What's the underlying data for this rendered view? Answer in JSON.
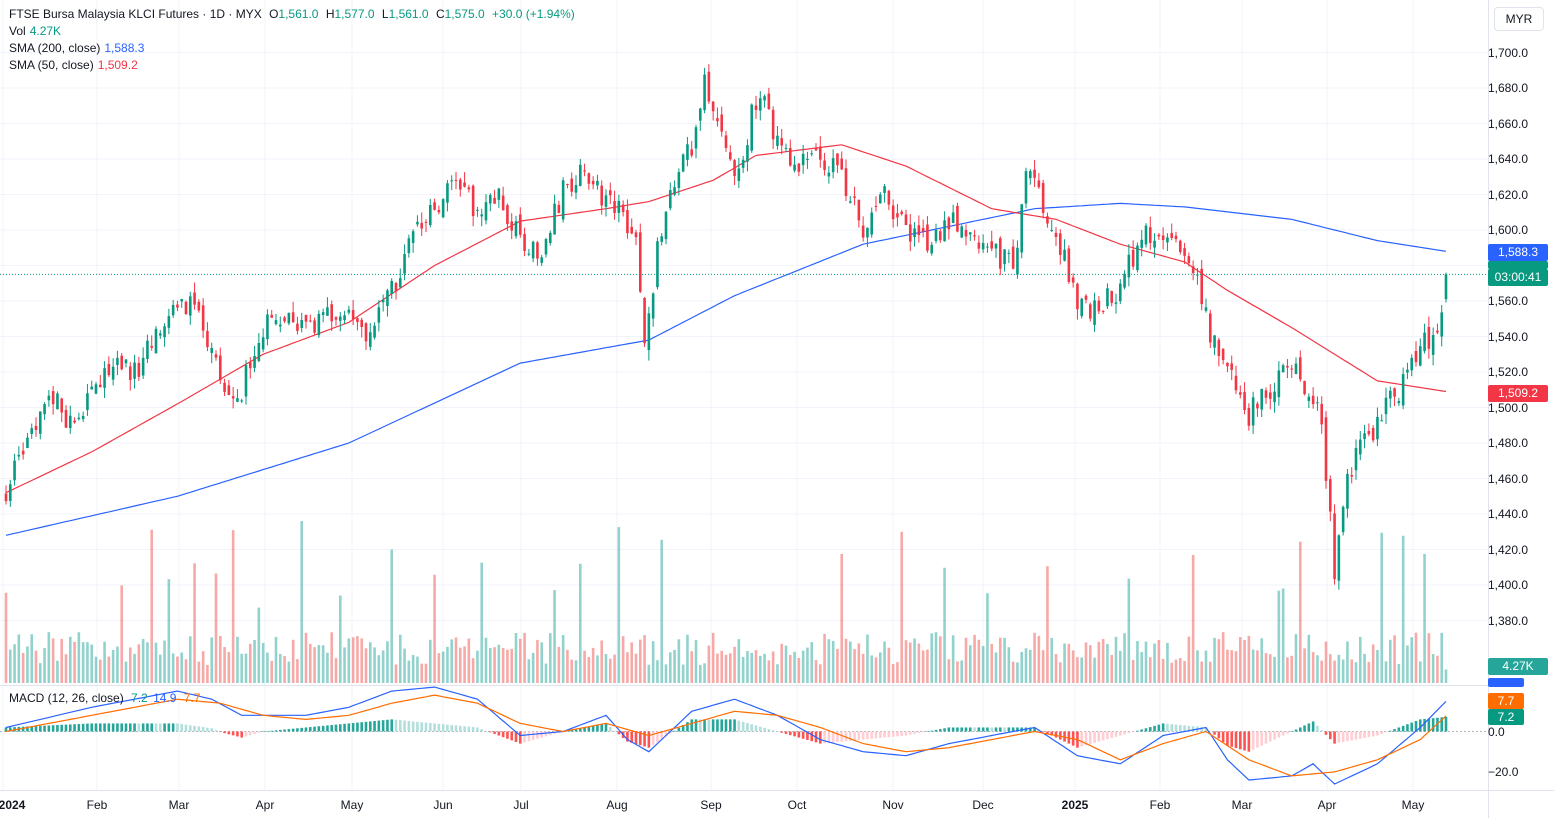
{
  "legend": {
    "title": "FTSE Bursa Malaysia KLCI Futures · 1D · MYX",
    "o_label": "O",
    "o_value": "1,561.0",
    "h_label": "H",
    "h_value": "1,577.0",
    "l_label": "L",
    "l_value": "1,561.0",
    "c_label": "C",
    "c_value": "1,575.0",
    "change": "+30.0 (+1.94%)",
    "vol_label": "Vol",
    "vol_value": "4.27K",
    "sma200_label": "SMA (200, close)",
    "sma200_value": "1,588.3",
    "sma50_label": "SMA (50, close)",
    "sma50_value": "1,509.2",
    "macd_label": "MACD (12, 26, close)",
    "macd_hist": "7.2",
    "macd_line": "14.9",
    "macd_signal": "7.7"
  },
  "currency": "MYR",
  "tags": {
    "sma200": "1,588.3",
    "countdown": "03:00:41",
    "sma50": "1,509.2",
    "volume": "4.27K",
    "macd_signal": "7.7",
    "macd_hist": "7.2"
  },
  "colors": {
    "up": "#089981",
    "down": "#f23645",
    "sma200": "#2962ff",
    "sma50": "#f23645",
    "macd": "#2962ff",
    "signal": "#ff6d00"
  },
  "chart_data": {
    "type": "candlestick",
    "price_axis_ticks": [
      "1,700.0",
      "1,680.0",
      "1,660.0",
      "1,640.0",
      "1,620.0",
      "1,600.0",
      "1,580.0",
      "1,560.0",
      "1,540.0",
      "1,520.0",
      "1,500.0",
      "1,480.0",
      "1,460.0",
      "1,440.0",
      "1,420.0",
      "1,400.0",
      "1,380.0"
    ],
    "ylim": [
      1360,
      1712
    ],
    "macd_axis_ticks": [
      "0.0",
      "−20.0"
    ],
    "x_axis_ticks": [
      "2024",
      "Feb",
      "Mar",
      "Apr",
      "May",
      "Jun",
      "Jul",
      "Aug",
      "Sep",
      "Oct",
      "Nov",
      "Dec",
      "2025",
      "Feb",
      "Mar",
      "Apr",
      "May"
    ],
    "series": [
      {
        "name": "FTSE Bursa Malaysia KLCI Futures",
        "close_points": [
          [
            0,
            1452
          ],
          [
            5,
            1480
          ],
          [
            10,
            1508
          ],
          [
            15,
            1492
          ],
          [
            20,
            1505
          ],
          [
            25,
            1525
          ],
          [
            30,
            1520
          ],
          [
            35,
            1538
          ],
          [
            40,
            1562
          ],
          [
            45,
            1552
          ],
          [
            50,
            1515
          ],
          [
            55,
            1510
          ],
          [
            60,
            1545
          ],
          [
            65,
            1548
          ],
          [
            70,
            1542
          ],
          [
            75,
            1550
          ],
          [
            80,
            1552
          ],
          [
            85,
            1540
          ],
          [
            90,
            1565
          ],
          [
            95,
            1598
          ],
          [
            100,
            1612
          ],
          [
            105,
            1625
          ],
          [
            110,
            1612
          ],
          [
            115,
            1618
          ],
          [
            120,
            1594
          ],
          [
            125,
            1588
          ],
          [
            130,
            1622
          ],
          [
            135,
            1632
          ],
          [
            140,
            1618
          ],
          [
            145,
            1605
          ],
          [
            147,
            1600
          ],
          [
            149,
            1532
          ],
          [
            152,
            1590
          ],
          [
            155,
            1620
          ],
          [
            160,
            1648
          ],
          [
            163,
            1688
          ],
          [
            167,
            1652
          ],
          [
            171,
            1630
          ],
          [
            174,
            1665
          ],
          [
            177,
            1670
          ],
          [
            180,
            1648
          ],
          [
            185,
            1638
          ],
          [
            190,
            1638
          ],
          [
            195,
            1632
          ],
          [
            200,
            1600
          ],
          [
            205,
            1618
          ],
          [
            210,
            1598
          ],
          [
            215,
            1592
          ],
          [
            220,
            1605
          ],
          [
            225,
            1598
          ],
          [
            230,
            1590
          ],
          [
            235,
            1578
          ],
          [
            238,
            1632
          ],
          [
            241,
            1622
          ],
          [
            245,
            1598
          ],
          [
            250,
            1560
          ],
          [
            255,
            1555
          ],
          [
            260,
            1568
          ],
          [
            265,
            1598
          ],
          [
            270,
            1598
          ],
          [
            275,
            1590
          ],
          [
            278,
            1568
          ],
          [
            282,
            1535
          ],
          [
            285,
            1520
          ],
          [
            290,
            1496
          ],
          [
            295,
            1510
          ],
          [
            300,
            1525
          ],
          [
            303,
            1510
          ],
          [
            307,
            1495
          ],
          [
            310,
            1405
          ],
          [
            313,
            1462
          ],
          [
            316,
            1478
          ],
          [
            320,
            1492
          ],
          [
            325,
            1510
          ],
          [
            330,
            1538
          ],
          [
            334,
            1542
          ],
          [
            336,
            1575
          ]
        ]
      },
      {
        "name": "SMA (200, close)",
        "points": [
          [
            0,
            1428
          ],
          [
            40,
            1450
          ],
          [
            80,
            1480
          ],
          [
            120,
            1525
          ],
          [
            150,
            1538
          ],
          [
            170,
            1563
          ],
          [
            200,
            1592
          ],
          [
            220,
            1602
          ],
          [
            240,
            1612
          ],
          [
            260,
            1615
          ],
          [
            275,
            1613
          ],
          [
            300,
            1606
          ],
          [
            320,
            1594
          ],
          [
            336,
            1588
          ]
        ]
      },
      {
        "name": "SMA (50, close)",
        "points": [
          [
            0,
            1452
          ],
          [
            20,
            1475
          ],
          [
            40,
            1502
          ],
          [
            60,
            1530
          ],
          [
            80,
            1548
          ],
          [
            100,
            1580
          ],
          [
            120,
            1605
          ],
          [
            140,
            1612
          ],
          [
            150,
            1616
          ],
          [
            165,
            1628
          ],
          [
            175,
            1642
          ],
          [
            195,
            1648
          ],
          [
            210,
            1636
          ],
          [
            230,
            1612
          ],
          [
            245,
            1606
          ],
          [
            260,
            1592
          ],
          [
            275,
            1582
          ],
          [
            285,
            1566
          ],
          [
            300,
            1545
          ],
          [
            310,
            1530
          ],
          [
            320,
            1515
          ],
          [
            336,
            1509
          ]
        ]
      },
      {
        "name": "Vol",
        "last": "4.27K"
      },
      {
        "name": "MACD (12, 26, close)",
        "macd_points": [
          [
            0,
            2
          ],
          [
            20,
            12
          ],
          [
            40,
            20
          ],
          [
            48,
            16
          ],
          [
            55,
            8
          ],
          [
            70,
            8
          ],
          [
            80,
            12
          ],
          [
            90,
            20
          ],
          [
            100,
            22
          ],
          [
            110,
            16
          ],
          [
            120,
            -2
          ],
          [
            130,
            0
          ],
          [
            140,
            8
          ],
          [
            145,
            -4
          ],
          [
            150,
            -10
          ],
          [
            160,
            10
          ],
          [
            170,
            16
          ],
          [
            180,
            8
          ],
          [
            190,
            -4
          ],
          [
            200,
            -10
          ],
          [
            210,
            -12
          ],
          [
            220,
            -6
          ],
          [
            230,
            -2
          ],
          [
            240,
            2
          ],
          [
            250,
            -12
          ],
          [
            260,
            -16
          ],
          [
            270,
            -2
          ],
          [
            280,
            2
          ],
          [
            285,
            -14
          ],
          [
            290,
            -24
          ],
          [
            300,
            -22
          ],
          [
            305,
            -16
          ],
          [
            310,
            -26
          ],
          [
            320,
            -16
          ],
          [
            330,
            2
          ],
          [
            336,
            14.9
          ]
        ],
        "signal_points": [
          [
            0,
            0
          ],
          [
            20,
            8
          ],
          [
            40,
            16
          ],
          [
            50,
            14
          ],
          [
            60,
            8
          ],
          [
            70,
            6
          ],
          [
            80,
            8
          ],
          [
            90,
            14
          ],
          [
            100,
            18
          ],
          [
            110,
            14
          ],
          [
            120,
            4
          ],
          [
            130,
            0
          ],
          [
            140,
            4
          ],
          [
            150,
            -2
          ],
          [
            160,
            4
          ],
          [
            170,
            10
          ],
          [
            180,
            8
          ],
          [
            190,
            2
          ],
          [
            200,
            -6
          ],
          [
            210,
            -10
          ],
          [
            220,
            -8
          ],
          [
            230,
            -4
          ],
          [
            240,
            0
          ],
          [
            250,
            -4
          ],
          [
            260,
            -14
          ],
          [
            270,
            -6
          ],
          [
            280,
            0
          ],
          [
            290,
            -14
          ],
          [
            300,
            -22
          ],
          [
            310,
            -20
          ],
          [
            320,
            -14
          ],
          [
            330,
            -4
          ],
          [
            336,
            7.7
          ]
        ],
        "hist_last": 7.2
      }
    ]
  }
}
